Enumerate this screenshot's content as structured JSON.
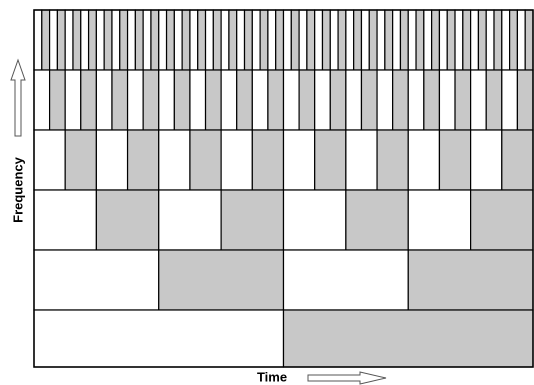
{
  "labels": {
    "y_axis": "Frequency",
    "x_axis": "Time"
  }
}
